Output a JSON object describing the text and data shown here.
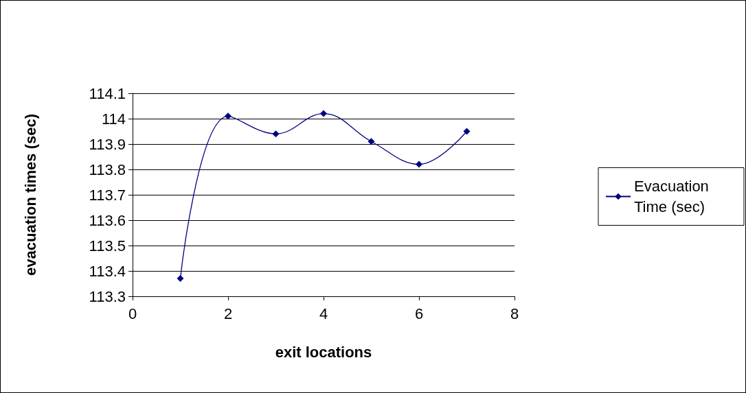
{
  "chart_data": {
    "type": "line",
    "xlabel": "exit locations",
    "ylabel": "evacuation times (sec)",
    "x": [
      1,
      2,
      3,
      4,
      5,
      6,
      7
    ],
    "series": [
      {
        "name": "Evacuation Time (sec)",
        "color": "#000080",
        "values": [
          113.37,
          114.01,
          113.94,
          114.02,
          113.91,
          113.82,
          113.95
        ]
      }
    ],
    "xlim": [
      0,
      8
    ],
    "xticks": [
      0,
      2,
      4,
      6,
      8
    ],
    "ylim": [
      113.3,
      114.1
    ],
    "yticks": [
      113.3,
      113.4,
      113.5,
      113.6,
      113.7,
      113.8,
      113.9,
      114,
      114.1
    ],
    "grid": "y",
    "legend": "right",
    "marker": "diamond",
    "line_style": "solid"
  }
}
